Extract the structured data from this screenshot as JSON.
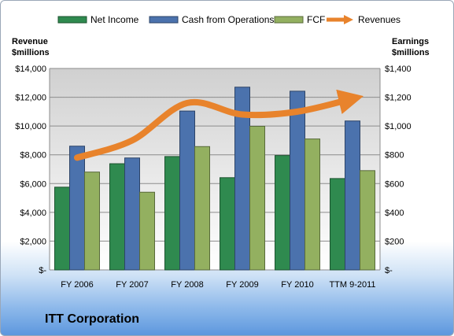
{
  "company": "ITT Corporation",
  "chart_data": {
    "type": "bar",
    "categories": [
      "FY 2006",
      "FY 2007",
      "FY 2008",
      "FY 2009",
      "FY 2010",
      "TTM 9-2011"
    ],
    "series": [
      {
        "name": "Net Income",
        "axis": "right",
        "color": "#2f8a4f",
        "values": [
          575,
          738,
          788,
          641,
          795,
          635
        ]
      },
      {
        "name": "Cash from Operations",
        "axis": "right",
        "color": "#4b72ad",
        "values": [
          860,
          778,
          1104,
          1270,
          1242,
          1035
        ]
      },
      {
        "name": "FCF",
        "axis": "right",
        "color": "#93b060",
        "values": [
          680,
          540,
          857,
          998,
          910,
          690
        ]
      },
      {
        "name": "Revenues",
        "axis": "left",
        "type": "line",
        "color": "#e8832c",
        "values": [
          7800,
          9000,
          11600,
          10800,
          11000,
          11900
        ]
      }
    ],
    "ylabel_left": "Revenue $millions",
    "ylabel_right": "Earnings $millions",
    "ylim_left": [
      0,
      14000
    ],
    "ylim_right": [
      0,
      1400
    ],
    "yticks_left": [
      "$-",
      "$2,000",
      "$4,000",
      "$6,000",
      "$8,000",
      "$10,000",
      "$12,000",
      "$14,000"
    ],
    "yticks_right": [
      "$-",
      "$200",
      "$400",
      "$600",
      "$800",
      "$1,000",
      "$1,200",
      "$1,400"
    ],
    "grid": true,
    "legend": "top"
  }
}
